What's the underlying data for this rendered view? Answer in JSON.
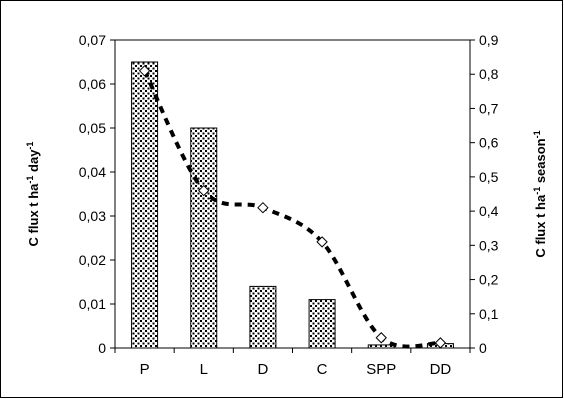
{
  "chart_data": {
    "type": "bar",
    "categories": [
      "P",
      "L",
      "D",
      "C",
      "SPP",
      "DD"
    ],
    "series": [
      {
        "axis": "left",
        "kind": "bar",
        "values": [
          0.065,
          0.05,
          0.014,
          0.011,
          0.0007,
          0.001
        ]
      },
      {
        "axis": "right",
        "kind": "line",
        "values": [
          0.81,
          0.46,
          0.41,
          0.31,
          0.03,
          0.015
        ]
      }
    ],
    "title": "",
    "xlabel": "",
    "ylabel_left": "C flux t ha-1 day-1",
    "ylabel_right": "C flux t ha-1 season-1",
    "ylim_left": [
      0,
      0.07
    ],
    "ylim_right": [
      0,
      0.9
    ],
    "ticks_left": [
      "0",
      "0,01",
      "0,02",
      "0,03",
      "0,04",
      "0,05",
      "0,06",
      "0,07"
    ],
    "ticks_right": [
      "0",
      "0,1",
      "0,2",
      "0,3",
      "0,4",
      "0,5",
      "0,6",
      "0,7",
      "0,8",
      "0,9"
    ],
    "grid": false,
    "legend": "none",
    "colors": {
      "bar_fill": "#ffffff",
      "bar_pattern": "#000000",
      "line": "#000000",
      "marker_fill": "#ffffff"
    }
  }
}
